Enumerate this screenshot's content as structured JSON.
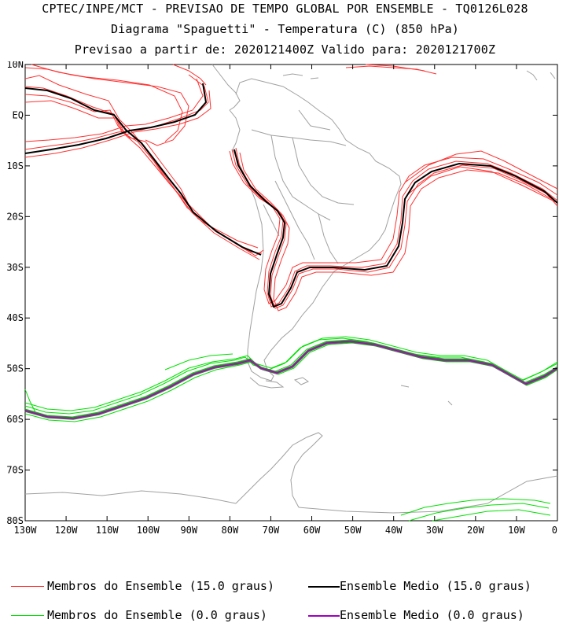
{
  "header": {
    "line1": "CPTEC/INPE/MCT - PREVISAO DE TEMPO GLOBAL POR ENSEMBLE - TQ0126L028",
    "line2": "Diagrama \"Spaguetti\" - Temperatura (C) (850 hPa)",
    "line3": "Previsao a partir de: 2020121400Z  Valido para: 2020121700Z"
  },
  "map": {
    "lat_labels": [
      "10N",
      "EQ",
      "10S",
      "20S",
      "30S",
      "40S",
      "50S",
      "60S",
      "70S",
      "80S"
    ],
    "lon_labels": [
      "130W",
      "120W",
      "110W",
      "100W",
      "90W",
      "80W",
      "70W",
      "60W",
      "50W",
      "40W",
      "30W",
      "20W",
      "10W",
      "0"
    ],
    "colors": {
      "member_15": "#ff3030",
      "mean_15": "#000000",
      "member_0": "#00e000",
      "mean_0": "#a000c0",
      "coast": "#a0a0a0"
    }
  },
  "legend": {
    "members_15": "Membros do Ensemble (15.0 graus)",
    "mean_15": "Ensemble Medio (15.0 graus)",
    "members_0": "Membros do Ensemble (0.0 graus)",
    "mean_0": "Ensemble Medio (0.0 graus)"
  }
}
